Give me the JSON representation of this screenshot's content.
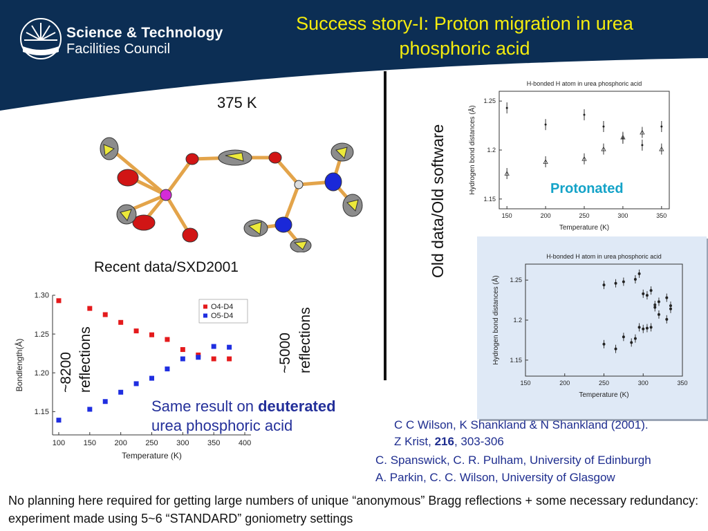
{
  "header": {
    "logo_line1": "Science & Technology",
    "logo_line2": "Facilities Council",
    "title": "Success story-I: Proton migration in urea phosphoric acid",
    "title_color": "#f4ec0e",
    "background_color": "#0c2e54"
  },
  "left_panel": {
    "temperature_label": "375 K",
    "caption": "Recent data/SXD2001",
    "reflections_8200_a": "~8200",
    "reflections_8200_b": "reflections",
    "same_result_prefix": "Same result on ",
    "same_result_bold": "deuterated",
    "same_result_suffix": "urea phosphoric acid"
  },
  "middle": {
    "vertical_label": "Old data/Old software",
    "reflections_5000_a": "~5000",
    "reflections_5000_b": "reflections"
  },
  "right_panel": {
    "protonated_label": "Protonated",
    "protonated_color": "#14a3c8"
  },
  "citations": {
    "line1": "C C Wilson, K Shankland & N Shankland (2001).",
    "line2_prefix": "Z Krist, ",
    "line2_bold": "216",
    "line2_suffix": ", 303-306",
    "line3": "C. Spanswick, C. R. Pulham, University of Edinburgh",
    "line4": "A. Parkin, C. C. Wilson, University of Glasgow"
  },
  "footer": {
    "text": "No planning here required for getting large numbers of unique “anonymous” Bragg reflections + some necessary redundancy: experiment made using 5~6 “STANDARD” goniometry settings"
  },
  "chart_data": [
    {
      "type": "scatter",
      "title": "",
      "xlabel": "Temperature (K)",
      "ylabel": "Bondlength(Å)",
      "xlim": [
        90,
        410
      ],
      "ylim": [
        1.12,
        1.3
      ],
      "xticks": [
        100,
        150,
        200,
        250,
        300,
        350,
        400
      ],
      "yticks": [
        1.15,
        1.2,
        1.25,
        1.3
      ],
      "ytick_labels": [
        "1.15",
        "1.20",
        "1.25",
        "1.30"
      ],
      "legend": "top-right",
      "series": [
        {
          "name": "O4-D4",
          "color": "#e41a1c",
          "x": [
            100,
            150,
            175,
            200,
            225,
            250,
            275,
            300,
            325,
            350,
            375
          ],
          "y": [
            1.293,
            1.283,
            1.275,
            1.265,
            1.254,
            1.249,
            1.243,
            1.23,
            1.223,
            1.218,
            1.218
          ]
        },
        {
          "name": "O5-D4",
          "color": "#1f2ee0",
          "x": [
            100,
            150,
            175,
            200,
            225,
            250,
            275,
            300,
            325,
            350,
            375
          ],
          "y": [
            1.139,
            1.153,
            1.163,
            1.175,
            1.186,
            1.193,
            1.205,
            1.218,
            1.22,
            1.234,
            1.233
          ]
        }
      ]
    },
    {
      "type": "scatter",
      "title": "H-bonded H atom in urea phosphoric acid",
      "xlabel": "Temperature (K)",
      "ylabel": "Hydrogen bond distances (Å)",
      "xlim": [
        140,
        360
      ],
      "ylim": [
        1.14,
        1.26
      ],
      "xticks": [
        150,
        200,
        250,
        300,
        350
      ],
      "yticks": [
        1.15,
        1.2,
        1.25
      ],
      "ytick_labels": [
        "1.15",
        "1.2",
        "1.25"
      ],
      "series": [
        {
          "name": "upper",
          "x": [
            150,
            200,
            250,
            275,
            300,
            325,
            350
          ],
          "y": [
            1.243,
            1.226,
            1.236,
            1.224,
            1.212,
            1.205,
            1.224
          ]
        },
        {
          "name": "lower",
          "x": [
            150,
            200,
            250,
            275,
            300,
            325,
            350
          ],
          "y": [
            1.176,
            1.188,
            1.191,
            1.201,
            1.213,
            1.218,
            1.201
          ]
        }
      ]
    },
    {
      "type": "scatter",
      "title": "H-bonded H atom in urea phosphoric acid",
      "xlabel": "Temperature (K)",
      "ylabel": "Hydrogen bond distances (Å)",
      "xlim": [
        150,
        350
      ],
      "ylim": [
        1.13,
        1.27
      ],
      "xticks": [
        150,
        200,
        250,
        300,
        350
      ],
      "yticks": [
        1.15,
        1.2,
        1.25
      ],
      "ytick_labels": [
        "1.15",
        "1.2",
        "1.25"
      ],
      "series": [
        {
          "name": "upper",
          "x": [
            250,
            265,
            275,
            290,
            295,
            300,
            305,
            310,
            315,
            320,
            330,
            335
          ],
          "y": [
            1.244,
            1.246,
            1.248,
            1.251,
            1.258,
            1.233,
            1.231,
            1.237,
            1.219,
            1.223,
            1.228,
            1.218
          ]
        },
        {
          "name": "lower",
          "x": [
            250,
            265,
            275,
            285,
            290,
            295,
            300,
            305,
            310,
            315,
            320,
            330,
            335
          ],
          "y": [
            1.17,
            1.164,
            1.179,
            1.172,
            1.177,
            1.191,
            1.189,
            1.19,
            1.191,
            1.216,
            1.207,
            1.201,
            1.214
          ]
        }
      ]
    }
  ]
}
